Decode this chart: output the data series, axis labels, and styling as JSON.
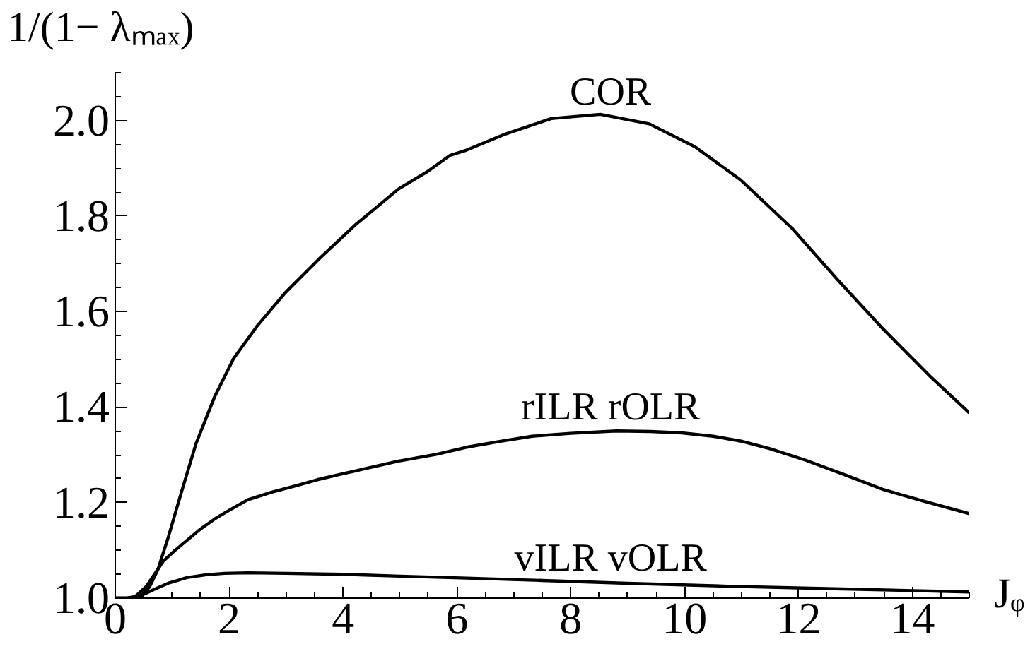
{
  "chart_data": {
    "type": "line",
    "xlabel": "Jᵩ",
    "ylabel": "1/(1− λₘₐₓ)",
    "xlim": [
      0,
      15
    ],
    "ylim": [
      1,
      2.1
    ],
    "xticks": [
      0,
      {
        "value": 0.5,
        "label": null
      },
      {
        "value": 1,
        "label": null
      },
      {
        "value": 1.5,
        "label": null
      },
      2,
      {
        "value": 2.5,
        "label": null
      },
      {
        "value": 3,
        "label": null
      },
      {
        "value": 3.5,
        "label": null
      },
      4,
      {
        "value": 4.5,
        "label": null
      },
      {
        "value": 5,
        "label": null
      },
      {
        "value": 5.5,
        "label": null
      },
      6,
      {
        "value": 6.5,
        "label": null
      },
      {
        "value": 7,
        "label": null
      },
      {
        "value": 7.5,
        "label": null
      },
      8,
      {
        "value": 8.5,
        "label": null
      },
      {
        "value": 9,
        "label": null
      },
      {
        "value": 9.5,
        "label": null
      },
      10,
      {
        "value": 10.5,
        "label": null
      },
      {
        "value": 11,
        "label": null
      },
      {
        "value": 11.5,
        "label": null
      },
      12,
      {
        "value": 12.5,
        "label": null
      },
      {
        "value": 13,
        "label": null
      },
      {
        "value": 13.5,
        "label": null
      },
      14,
      {
        "value": 14.5,
        "label": null
      },
      {
        "value": 15,
        "label": null
      }
    ],
    "yticks": [
      {
        "value": 1,
        "label": "1.0"
      },
      {
        "value": 1.05,
        "label": null
      },
      {
        "value": 1.1,
        "label": null
      },
      {
        "value": 1.15,
        "label": null
      },
      1.2,
      {
        "value": 1.25,
        "label": null
      },
      {
        "value": 1.3,
        "label": null
      },
      {
        "value": 1.35,
        "label": null
      },
      1.4,
      {
        "value": 1.45,
        "label": null
      },
      {
        "value": 1.5,
        "label": null
      },
      {
        "value": 1.55,
        "label": null
      },
      1.6,
      {
        "value": 1.65,
        "label": null
      },
      {
        "value": 1.7,
        "label": null
      },
      {
        "value": 1.75,
        "label": null
      },
      1.8,
      {
        "value": 1.85,
        "label": null
      },
      {
        "value": 1.9,
        "label": null
      },
      {
        "value": 1.95,
        "label": null
      },
      {
        "value": 2,
        "label": "2.0"
      },
      {
        "value": 2.05,
        "label": null
      },
      {
        "value": 2.1,
        "label": null
      }
    ],
    "series": [
      {
        "name": "COR",
        "color": "#000000",
        "x": [
          0,
          0.3,
          0.45,
          0.6,
          0.75,
          0.93,
          1.17,
          1.42,
          1.75,
          2.08,
          2.5,
          2.99,
          3.57,
          4.23,
          4.98,
          5.47,
          5.88,
          6.17,
          6.86,
          7.66,
          8.52,
          9.38,
          10.18,
          10.98,
          11.89,
          12.7,
          13.5,
          14.3,
          15
        ],
        "values": [
          1.0,
          1.0,
          1.005,
          1.023,
          1.06,
          1.127,
          1.225,
          1.324,
          1.423,
          1.502,
          1.571,
          1.64,
          1.709,
          1.783,
          1.857,
          1.892,
          1.927,
          1.938,
          1.972,
          2.004,
          2.013,
          1.993,
          1.945,
          1.876,
          1.774,
          1.665,
          1.562,
          1.466,
          1.388
        ]
      },
      {
        "name": "rILR rOLR",
        "color": "#000000",
        "x": [
          0,
          0.2,
          0.35,
          0.55,
          0.84,
          1.05,
          1.26,
          1.5,
          1.75,
          2.0,
          2.33,
          2.75,
          3.16,
          3.55,
          3.98,
          4.5,
          4.98,
          5.64,
          6.17,
          6.75,
          7.32,
          8.0,
          8.8,
          9.4,
          9.95,
          10.5,
          10.98,
          11.5,
          12.12,
          12.8,
          13.5,
          14.2,
          15
        ],
        "values": [
          1.0,
          1.0,
          1.003,
          1.025,
          1.077,
          1.1,
          1.121,
          1.145,
          1.166,
          1.184,
          1.206,
          1.222,
          1.235,
          1.248,
          1.26,
          1.274,
          1.287,
          1.301,
          1.316,
          1.328,
          1.339,
          1.345,
          1.35,
          1.349,
          1.346,
          1.339,
          1.329,
          1.313,
          1.289,
          1.259,
          1.227,
          1.203,
          1.177
        ]
      },
      {
        "name": "vILR vOLR",
        "color": "#000000",
        "x": [
          0,
          0.25,
          0.45,
          0.68,
          0.95,
          1.26,
          1.6,
          1.92,
          2.33,
          3.0,
          3.98,
          5.0,
          6.17,
          7.5,
          9.0,
          10.75,
          12.5,
          15
        ],
        "values": [
          1.0,
          1.0,
          1.005,
          1.018,
          1.032,
          1.043,
          1.049,
          1.052,
          1.053,
          1.052,
          1.05,
          1.046,
          1.042,
          1.037,
          1.031,
          1.025,
          1.02,
          1.013
        ]
      }
    ]
  }
}
